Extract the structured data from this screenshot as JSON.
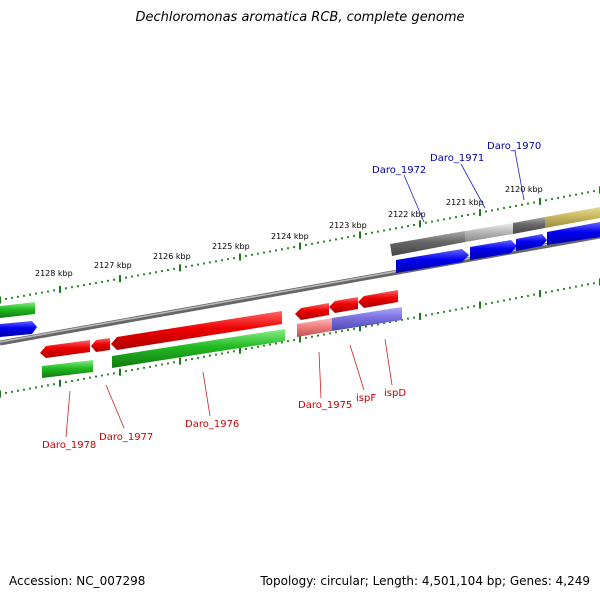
{
  "title": "Dechloromonas aromatica RCB, complete genome",
  "footer": {
    "accession": "Accession: NC_007298",
    "genome_info": "Topology: circular; Length: 4,501,104 bp; Genes: 4,249"
  },
  "colors": {
    "forward_cds": "#0000ee",
    "reverse_cds": "#ee0000",
    "rna": "#22bb22",
    "gray": "#777777",
    "light_gray": "#bbbbbb",
    "olive": "#c8b860",
    "purple": "#7a70e0",
    "pink": "#f08080",
    "tick": "#1a7a1a",
    "forward_label": "#0000aa",
    "reverse_label": "#cc0000"
  },
  "ticks": [
    {
      "label": "2128 kbp"
    },
    {
      "label": "2127 kbp"
    },
    {
      "label": "2126 kbp"
    },
    {
      "label": "2125 kbp"
    },
    {
      "label": "2124 kbp"
    },
    {
      "label": "2123 kbp"
    },
    {
      "label": "2122 kbp"
    },
    {
      "label": "2121 kbp"
    },
    {
      "label": "2120 kbp"
    }
  ],
  "gene_labels": {
    "forward": [
      "Daro_1972",
      "Daro_1971",
      "Daro_1970"
    ],
    "reverse": [
      "Daro_1978",
      "Daro_1977",
      "Daro_1976",
      "Daro_1975",
      "ispF",
      "ispD"
    ]
  }
}
